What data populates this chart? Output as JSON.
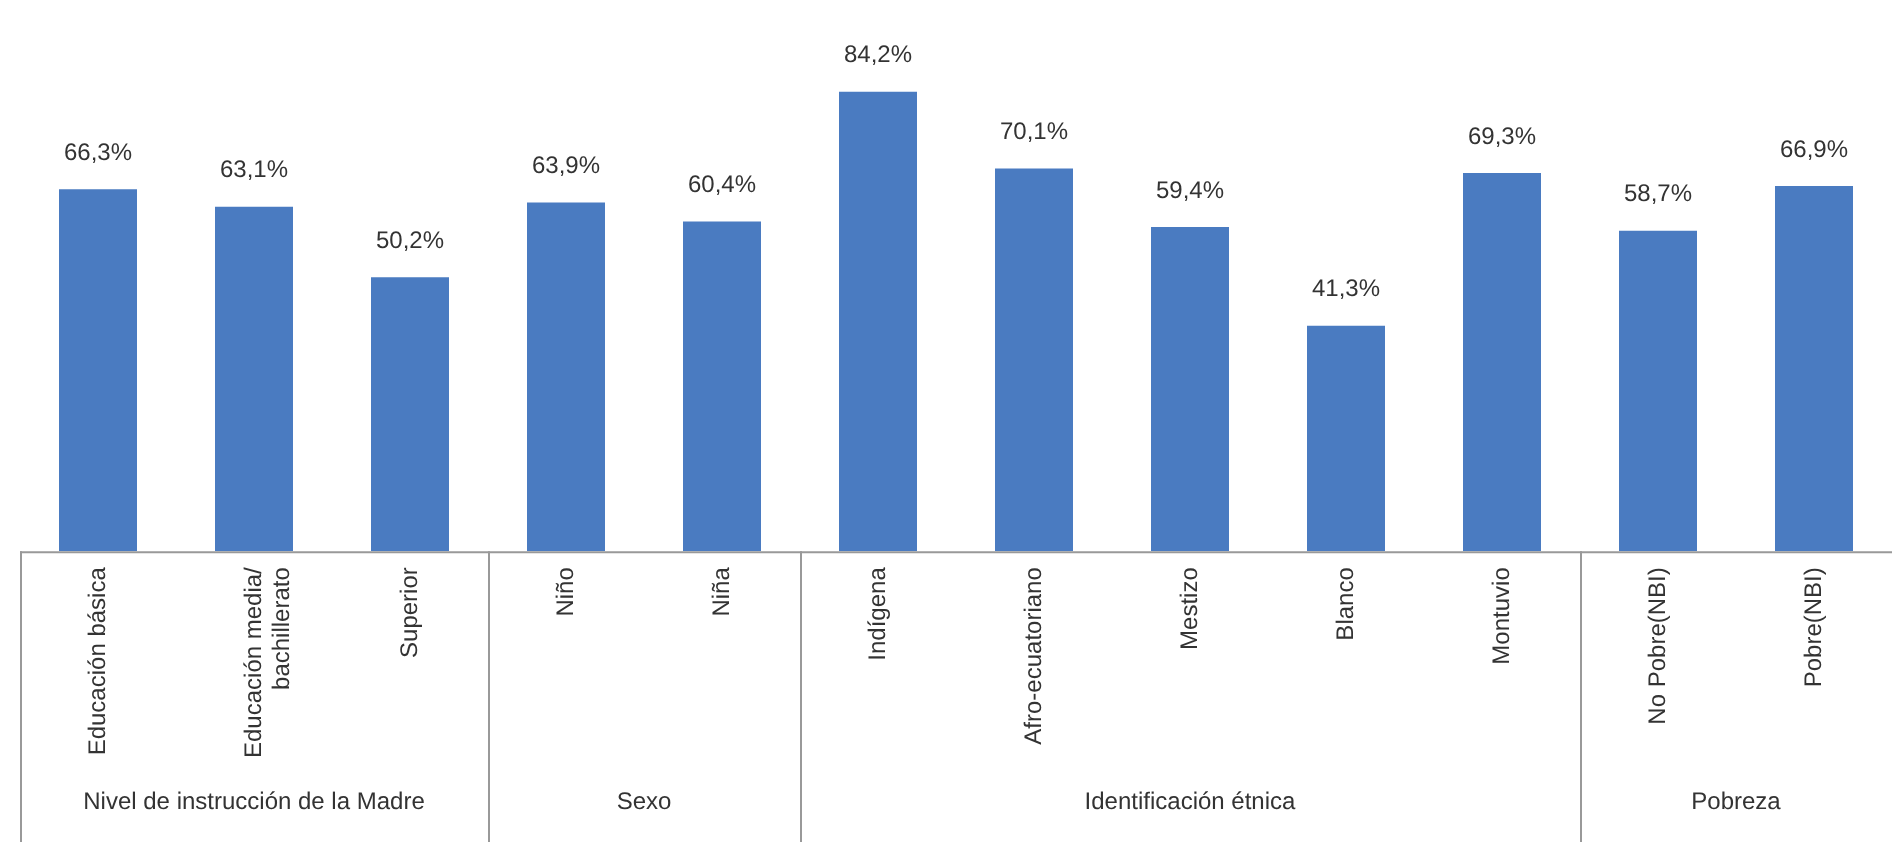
{
  "chart_data": {
    "type": "bar",
    "categories": [
      "Educación básica",
      "Educación media/ bachillerato",
      "Superior",
      "Niño",
      "Niña",
      "Indígena",
      "Afro-ecuatoriano",
      "Mestizo",
      "Blanco",
      "Montuvio",
      "No Pobre(NBI)",
      "Pobre(NBI)"
    ],
    "values": [
      66.3,
      63.1,
      50.2,
      63.9,
      60.4,
      84.2,
      70.1,
      59.4,
      41.3,
      69.3,
      58.7,
      66.9
    ],
    "value_labels": [
      "66,3%",
      "63,1%",
      "50,2%",
      "63,9%",
      "60,4%",
      "84,2%",
      "70,1%",
      "59,4%",
      "41,3%",
      "69,3%",
      "58,7%",
      "66,9%"
    ],
    "color": "#4a7bc1",
    "annotations": [
      "Nivel de instrucción de la Madre",
      "Sexo",
      "Identificación étnica",
      "Pobreza"
    ],
    "legend": false,
    "grid": false
  }
}
